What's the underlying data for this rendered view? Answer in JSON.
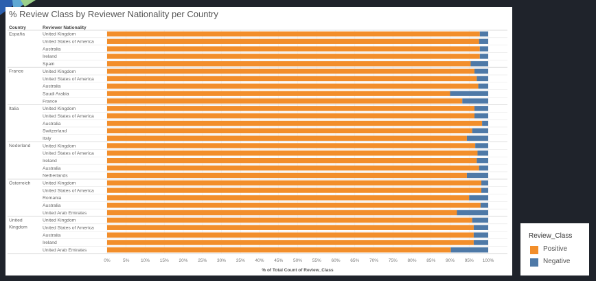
{
  "title": "% Review Class by Reviewer Nationality per Country",
  "headers": {
    "country": "Country",
    "nationality": "Reviewer Nationality"
  },
  "colors": {
    "positive": "#f28e2b",
    "negative": "#4e79a7",
    "background": "#1f232b"
  },
  "legend": {
    "title": "Review_Class",
    "items": [
      "Positive",
      "Negative"
    ]
  },
  "chart_data": {
    "type": "bar",
    "orientation": "horizontal",
    "stacked": true,
    "xlabel": "% of Total Count of Review_Class",
    "xlim": [
      0,
      100
    ],
    "xticks": [
      "0%",
      "5%",
      "10%",
      "15%",
      "20%",
      "25%",
      "30%",
      "35%",
      "40%",
      "45%",
      "50%",
      "55%",
      "60%",
      "65%",
      "70%",
      "75%",
      "80%",
      "85%",
      "90%",
      "95%",
      "100%"
    ],
    "legend_position": "bottom-right",
    "groups": [
      {
        "country": [
          "España"
        ],
        "rows": [
          {
            "nationality": "United Kingdom",
            "positive": 97.8,
            "negative": 2.2
          },
          {
            "nationality": "United States of America",
            "positive": 97.6,
            "negative": 2.4
          },
          {
            "nationality": "Australia",
            "positive": 97.8,
            "negative": 2.2
          },
          {
            "nationality": "Ireland",
            "positive": 97.8,
            "negative": 2.2
          },
          {
            "nationality": "Spain",
            "positive": 95.4,
            "negative": 4.6
          }
        ]
      },
      {
        "country": [
          "France"
        ],
        "rows": [
          {
            "nationality": "United Kingdom",
            "positive": 96.4,
            "negative": 3.6
          },
          {
            "nationality": "United States of America",
            "positive": 97.0,
            "negative": 3.0
          },
          {
            "nationality": "Australia",
            "positive": 97.4,
            "negative": 2.6
          },
          {
            "nationality": "Saudi Arabia",
            "positive": 90.0,
            "negative": 10.0
          },
          {
            "nationality": "France",
            "positive": 93.2,
            "negative": 6.8
          }
        ]
      },
      {
        "country": [
          "Italia"
        ],
        "rows": [
          {
            "nationality": "United Kingdom",
            "positive": 96.4,
            "negative": 3.6
          },
          {
            "nationality": "United States of America",
            "positive": 96.4,
            "negative": 3.6
          },
          {
            "nationality": "Australia",
            "positive": 98.4,
            "negative": 1.6
          },
          {
            "nationality": "Switzerland",
            "positive": 95.8,
            "negative": 4.2
          },
          {
            "nationality": "Italy",
            "positive": 94.4,
            "negative": 5.6
          }
        ]
      },
      {
        "country": [
          "Nederland"
        ],
        "rows": [
          {
            "nationality": "United Kingdom",
            "positive": 96.6,
            "negative": 3.4
          },
          {
            "nationality": "United States of America",
            "positive": 97.2,
            "negative": 2.8
          },
          {
            "nationality": "Ireland",
            "positive": 97.0,
            "negative": 3.0
          },
          {
            "nationality": "Australia",
            "positive": 97.6,
            "negative": 2.4
          },
          {
            "nationality": "Netherlands",
            "positive": 94.4,
            "negative": 5.6
          }
        ]
      },
      {
        "country": [
          "Österreich"
        ],
        "rows": [
          {
            "nationality": "United Kingdom",
            "positive": 98.2,
            "negative": 1.8
          },
          {
            "nationality": "United States of America",
            "positive": 98.2,
            "negative": 1.8
          },
          {
            "nationality": "Romania",
            "positive": 95.0,
            "negative": 5.0
          },
          {
            "nationality": "Australia",
            "positive": 98.0,
            "negative": 2.0
          },
          {
            "nationality": "United Arab Emirates",
            "positive": 91.8,
            "negative": 8.2
          }
        ]
      },
      {
        "country": [
          "United",
          "Kingdom"
        ],
        "rows": [
          {
            "nationality": "United Kingdom",
            "positive": 95.8,
            "negative": 4.2
          },
          {
            "nationality": "United States of America",
            "positive": 96.2,
            "negative": 3.8
          },
          {
            "nationality": "Australia",
            "positive": 96.2,
            "negative": 3.8
          },
          {
            "nationality": "Ireland",
            "positive": 96.2,
            "negative": 3.8
          },
          {
            "nationality": "United Arab Emirates",
            "positive": 90.2,
            "negative": 9.8
          }
        ]
      }
    ]
  }
}
